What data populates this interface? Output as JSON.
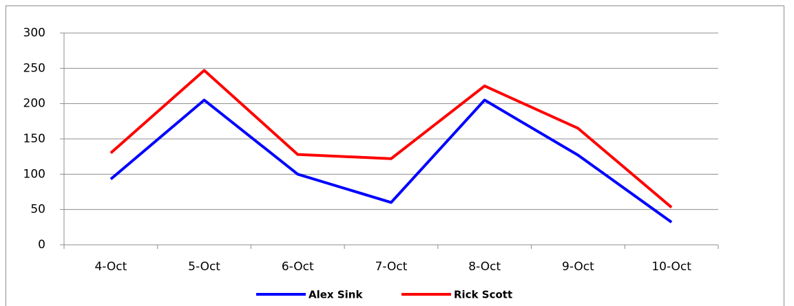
{
  "chart_data": {
    "type": "line",
    "categories": [
      "4-Oct",
      "5-Oct",
      "6-Oct",
      "7-Oct",
      "8-Oct",
      "9-Oct",
      "10-Oct"
    ],
    "series": [
      {
        "name": "Alex Sink",
        "color": "#0000ff",
        "values": [
          93,
          205,
          100,
          60,
          205,
          127,
          32
        ]
      },
      {
        "name": "Rick Scott",
        "color": "#ff0000",
        "values": [
          130,
          247,
          128,
          122,
          225,
          165,
          53
        ]
      }
    ],
    "ylim": [
      0,
      300
    ],
    "yticks": [
      0,
      50,
      100,
      150,
      200,
      250,
      300
    ],
    "grid": true,
    "legend": "bottom"
  }
}
